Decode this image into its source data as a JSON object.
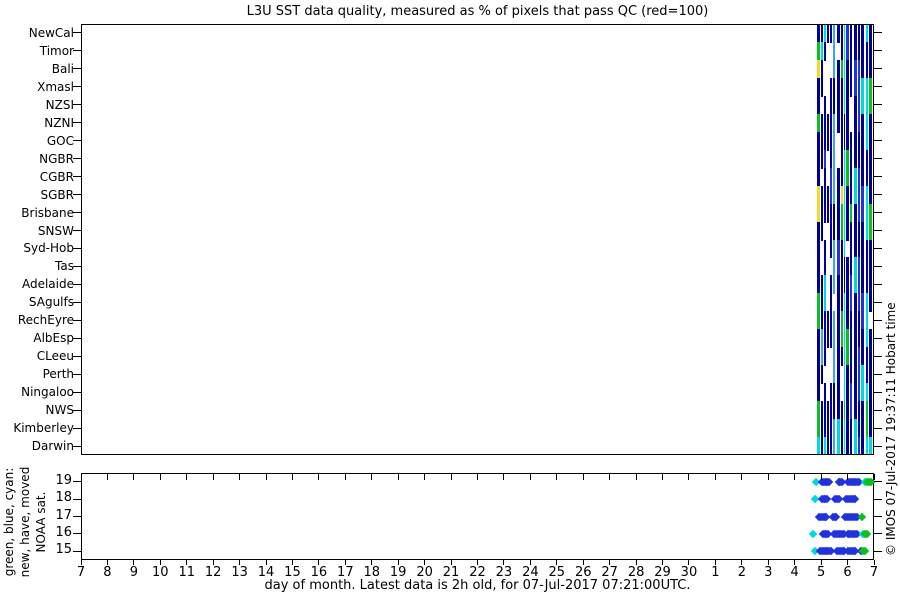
{
  "title": "L3U SST data quality, measured as % of pixels that pass QC (red=100)",
  "x_axis": {
    "label": "day of month. Latest data is 2h old, for 07-Jul-2017 07:21:00UTC.",
    "tick_labels": [
      "7",
      "8",
      "9",
      "10",
      "11",
      "12",
      "13",
      "14",
      "15",
      "16",
      "17",
      "18",
      "19",
      "20",
      "21",
      "22",
      "23",
      "24",
      "25",
      "26",
      "27",
      "28",
      "29",
      "30",
      "1",
      "2",
      "3",
      "4",
      "5",
      "6",
      "7"
    ]
  },
  "watermark": "© IMOS 07-Jul-2017 19:37:11 Hobart time",
  "legend_note_lines": [
    "green, blue, cyan:",
    "new, have, moved",
    "NOAA sat."
  ],
  "palette": {
    "navy": "#000093",
    "blue": "#2233DD",
    "lblue": "#3FA0FF",
    "cyan": "#00D8E0",
    "green": "#09C119",
    "yellow": "#F2DC23",
    "orange": "#FFAE2A",
    "axis": "#000000"
  },
  "chart_data": [
    {
      "type": "heatmap",
      "title": "L3U SST data quality, measured as % of pixels that pass QC (red=100)",
      "color_meaning": "% of pixels that pass QC (red=100); white = no data",
      "regions": [
        "NewCal",
        "Timor",
        "Bali",
        "Xmasl",
        "NZSI",
        "NZNI",
        "GOC",
        "NGBR",
        "CGBR",
        "SGBR",
        "Brisbane",
        "SNSW",
        "Syd-Hob",
        "Tas",
        "Adelaide",
        "SAgulfs",
        "RechEyre",
        "AlbEsp",
        "CLeeu",
        "Perth",
        "Ningaloo",
        "NWS",
        "Kimberley",
        "Darwin"
      ],
      "x_range": [
        "Jun-7",
        "Jul-7"
      ],
      "data_window_jul_days": [
        4.7,
        7.0
      ],
      "columns": [
        {
          "x": 736,
          "w": 3,
          "base": "navy",
          "ov": [
            [
              1,
              1,
              "green"
            ],
            [
              2,
              2,
              "yellow"
            ],
            [
              5,
              5,
              "green"
            ],
            [
              9,
              10,
              "yellow"
            ],
            [
              15,
              16,
              "green"
            ],
            [
              21,
              22,
              "green"
            ],
            [
              23,
              23,
              "cyan"
            ]
          ]
        },
        {
          "x": 740,
          "w": 2,
          "base": "navy",
          "ov": [
            [
              1,
              1,
              "cyan"
            ],
            [
              4,
              4,
              "white"
            ],
            [
              8,
              8,
              "white"
            ],
            [
              12,
              13,
              "white"
            ],
            [
              17,
              18,
              "lblue"
            ],
            [
              20,
              20,
              "white"
            ]
          ]
        },
        {
          "x": 743,
          "w": 2,
          "base": "navy",
          "ov": [
            [
              0,
              0,
              "cyan"
            ],
            [
              2,
              3,
              "white"
            ],
            [
              7,
              7,
              "blue"
            ],
            [
              11,
              11,
              "white"
            ],
            [
              14,
              15,
              "cyan"
            ],
            [
              19,
              19,
              "white"
            ],
            [
              23,
              23,
              "cyan"
            ]
          ]
        },
        {
          "x": 746,
          "w": 2,
          "base": "white",
          "ov": [
            [
              0,
              0,
              "navy"
            ],
            [
              5,
              6,
              "navy"
            ],
            [
              9,
              10,
              "navy"
            ],
            [
              16,
              17,
              "navy"
            ],
            [
              21,
              23,
              "navy"
            ]
          ]
        },
        {
          "x": 749,
          "w": 2,
          "base": "navy",
          "ov": [
            [
              1,
              2,
              "white"
            ],
            [
              8,
              9,
              "blue"
            ],
            [
              13,
              13,
              "white"
            ],
            [
              18,
              19,
              "white"
            ]
          ]
        },
        {
          "x": 752,
          "w": 2,
          "base": "lblue",
          "ov": [
            [
              3,
              4,
              "navy"
            ],
            [
              10,
              11,
              "navy"
            ],
            [
              15,
              15,
              "white"
            ],
            [
              20,
              21,
              "navy"
            ]
          ]
        },
        {
          "x": 755,
          "w": 1,
          "base": "white",
          "ov": []
        },
        {
          "x": 756,
          "w": 3,
          "base": "navy",
          "ov": [
            [
              1,
              1,
              "white"
            ],
            [
              6,
              7,
              "white"
            ],
            [
              12,
              13,
              "blue"
            ],
            [
              22,
              23,
              "cyan"
            ]
          ]
        },
        {
          "x": 760,
          "w": 2,
          "base": "navy",
          "ov": [
            [
              2,
              2,
              "green"
            ],
            [
              9,
              9,
              "yellow"
            ],
            [
              10,
              11,
              "green"
            ],
            [
              16,
              17,
              "green"
            ],
            [
              19,
              20,
              "white"
            ]
          ]
        },
        {
          "x": 763,
          "w": 1,
          "base": "cyan",
          "ov": [
            [
              5,
              6,
              "navy"
            ],
            [
              13,
              14,
              "navy"
            ],
            [
              21,
              21,
              "green"
            ]
          ]
        },
        {
          "x": 765,
          "w": 3,
          "base": "navy",
          "ov": [
            [
              0,
              1,
              "blue"
            ],
            [
              7,
              8,
              "green"
            ],
            [
              12,
              12,
              "white"
            ],
            [
              17,
              18,
              "green"
            ]
          ]
        },
        {
          "x": 769,
          "w": 2,
          "base": "navy",
          "ov": [
            [
              4,
              5,
              "white"
            ],
            [
              10,
              10,
              "green"
            ],
            [
              14,
              15,
              "blue"
            ],
            [
              20,
              21,
              "blue"
            ]
          ]
        },
        {
          "x": 772,
          "w": 1,
          "base": "white",
          "ov": []
        },
        {
          "x": 773,
          "w": 3,
          "base": "navy",
          "ov": [
            [
              2,
              3,
              "blue"
            ],
            [
              8,
              9,
              "cyan"
            ],
            [
              13,
              14,
              "cyan"
            ],
            [
              22,
              23,
              "cyan"
            ]
          ]
        },
        {
          "x": 777,
          "w": 2,
          "base": "blue",
          "ov": [
            [
              0,
              1,
              "navy"
            ],
            [
              6,
              7,
              "navy"
            ],
            [
              11,
              12,
              "navy"
            ],
            [
              16,
              17,
              "navy"
            ],
            [
              21,
              22,
              "navy"
            ]
          ]
        },
        {
          "x": 780,
          "w": 3,
          "base": "navy",
          "ov": [
            [
              3,
              4,
              "cyan"
            ],
            [
              9,
              10,
              "blue"
            ],
            [
              15,
              16,
              "blue"
            ],
            [
              19,
              20,
              "cyan"
            ]
          ]
        },
        {
          "x": 784,
          "w": 1,
          "base": "white",
          "ov": []
        },
        {
          "x": 785,
          "w": 2,
          "base": "cyan",
          "ov": [
            [
              1,
              2,
              "navy"
            ],
            [
              7,
              8,
              "navy"
            ],
            [
              12,
              14,
              "navy"
            ],
            [
              18,
              19,
              "navy"
            ],
            [
              21,
              22,
              "green"
            ]
          ]
        },
        {
          "x": 788,
          "w": 3,
          "base": "navy",
          "ov": [
            [
              3,
              4,
              "green"
            ],
            [
              10,
              11,
              "green"
            ],
            [
              16,
              16,
              "white"
            ],
            [
              23,
              23,
              "cyan"
            ]
          ]
        },
        {
          "x": 792,
          "w": 1,
          "base": "navy",
          "ov": [
            [
              1,
              1,
              "green"
            ],
            [
              11,
              12,
              "green"
            ],
            [
              18,
              19,
              "blue"
            ],
            [
              21,
              22,
              "green"
            ]
          ]
        }
      ]
    },
    {
      "type": "scatter",
      "ylabel": "NOAA sat.",
      "y_ticks": [
        "19",
        "18",
        "17",
        "16",
        "15"
      ],
      "marker": "diamond",
      "legend": {
        "green": "new",
        "blue": "have",
        "cyan": "moved"
      },
      "satellites": [
        {
          "sat": "19",
          "points": [
            [
              4.82,
              "c"
            ],
            [
              5.03,
              "b"
            ],
            [
              5.1,
              "b"
            ],
            [
              5.17,
              "b"
            ],
            [
              5.24,
              "b"
            ],
            [
              5.31,
              "b"
            ],
            [
              5.66,
              "b"
            ],
            [
              5.73,
              "b"
            ],
            [
              5.8,
              "b"
            ],
            [
              6.02,
              "b"
            ],
            [
              6.09,
              "b"
            ],
            [
              6.16,
              "b"
            ],
            [
              6.23,
              "b"
            ],
            [
              6.3,
              "b"
            ],
            [
              6.37,
              "b"
            ],
            [
              6.44,
              "b"
            ],
            [
              6.66,
              "c"
            ],
            [
              6.74,
              "g"
            ],
            [
              6.81,
              "g"
            ],
            [
              6.88,
              "g"
            ]
          ]
        },
        {
          "sat": "18",
          "points": [
            [
              4.76,
              "c"
            ],
            [
              5.02,
              "b"
            ],
            [
              5.09,
              "b"
            ],
            [
              5.16,
              "b"
            ],
            [
              5.23,
              "b"
            ],
            [
              5.52,
              "b"
            ],
            [
              5.59,
              "b"
            ],
            [
              5.66,
              "b"
            ],
            [
              5.95,
              "b"
            ],
            [
              6.02,
              "b"
            ],
            [
              6.09,
              "b"
            ],
            [
              6.16,
              "b"
            ],
            [
              6.23,
              "b"
            ],
            [
              6.3,
              "b"
            ]
          ]
        },
        {
          "sat": "17",
          "points": [
            [
              4.92,
              "b"
            ],
            [
              4.99,
              "b"
            ],
            [
              5.06,
              "b"
            ],
            [
              5.13,
              "b"
            ],
            [
              5.2,
              "b"
            ],
            [
              5.44,
              "b"
            ],
            [
              5.51,
              "b"
            ],
            [
              5.58,
              "b"
            ],
            [
              5.92,
              "b"
            ],
            [
              5.99,
              "b"
            ],
            [
              6.06,
              "b"
            ],
            [
              6.13,
              "b"
            ],
            [
              6.2,
              "b"
            ],
            [
              6.27,
              "b"
            ],
            [
              6.34,
              "b"
            ],
            [
              6.56,
              "g"
            ]
          ]
        },
        {
          "sat": "16",
          "points": [
            [
              4.7,
              "c"
            ],
            [
              5.06,
              "b"
            ],
            [
              5.13,
              "b"
            ],
            [
              5.2,
              "b"
            ],
            [
              5.27,
              "b"
            ],
            [
              5.5,
              "b"
            ],
            [
              5.57,
              "b"
            ],
            [
              5.64,
              "b"
            ],
            [
              5.71,
              "b"
            ],
            [
              5.78,
              "b"
            ],
            [
              5.85,
              "b"
            ],
            [
              6.0,
              "b"
            ],
            [
              6.07,
              "b"
            ],
            [
              6.14,
              "b"
            ],
            [
              6.21,
              "b"
            ],
            [
              6.28,
              "b"
            ],
            [
              6.35,
              "b"
            ],
            [
              6.6,
              "c"
            ],
            [
              6.67,
              "g"
            ],
            [
              6.74,
              "g"
            ]
          ]
        },
        {
          "sat": "15",
          "points": [
            [
              4.75,
              "c"
            ],
            [
              4.96,
              "b"
            ],
            [
              5.03,
              "b"
            ],
            [
              5.1,
              "b"
            ],
            [
              5.17,
              "b"
            ],
            [
              5.24,
              "b"
            ],
            [
              5.31,
              "b"
            ],
            [
              5.38,
              "b"
            ],
            [
              5.6,
              "b"
            ],
            [
              5.67,
              "b"
            ],
            [
              5.74,
              "b"
            ],
            [
              5.81,
              "b"
            ],
            [
              5.88,
              "b"
            ],
            [
              6.02,
              "b"
            ],
            [
              6.09,
              "b"
            ],
            [
              6.16,
              "b"
            ],
            [
              6.23,
              "b"
            ],
            [
              6.3,
              "b"
            ],
            [
              6.5,
              "b"
            ],
            [
              6.6,
              "g"
            ],
            [
              6.66,
              "g"
            ]
          ]
        }
      ]
    }
  ]
}
